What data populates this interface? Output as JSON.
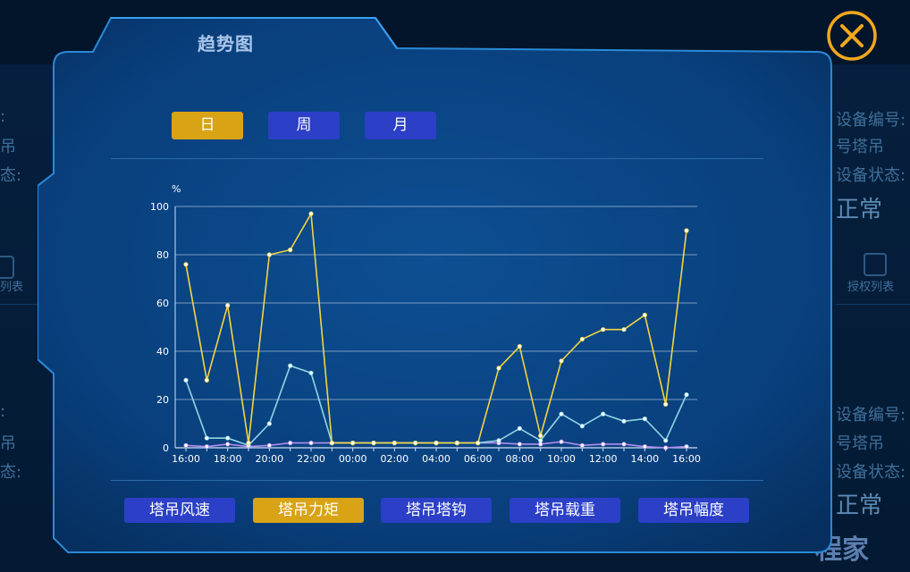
{
  "modal": {
    "title": "趋势图",
    "close_icon": "close-circle-x-icon"
  },
  "period_tabs": [
    {
      "label": "日",
      "active": true
    },
    {
      "label": "周",
      "active": false
    },
    {
      "label": "月",
      "active": false
    }
  ],
  "metric_tabs": [
    {
      "label": "塔吊风速",
      "active": false
    },
    {
      "label": "塔吊力矩",
      "active": true
    },
    {
      "label": "塔吊塔钩",
      "active": false
    },
    {
      "label": "塔吊载重",
      "active": false
    },
    {
      "label": "塔吊幅度",
      "active": false
    }
  ],
  "colors": {
    "active_tab": "#d9a316",
    "inactive_tab": "#2b3fc7",
    "series_yellow": "#f2d541",
    "series_cyan": "#8fd6e6",
    "series_purple": "#b48cf0",
    "close": "#f2a81d"
  },
  "background": {
    "left_labels": [
      ":",
      "吊",
      "态:",
      ":",
      "吊",
      "态:"
    ],
    "right_labels": [
      "设备编号:",
      "号塔吊",
      "设备状态:",
      "设备编号:",
      "号塔吊",
      "设备状态:"
    ],
    "status_values": [
      "正常",
      "正常"
    ],
    "left_link": "列表",
    "right_link": "授权列表",
    "watermark": "程家"
  },
  "chart_data": {
    "type": "line",
    "ylabel": "%",
    "ylim": [
      0,
      100
    ],
    "yticks": [
      0,
      20,
      40,
      60,
      80,
      100
    ],
    "grid": true,
    "x": [
      "16:00",
      "17:00",
      "18:00",
      "19:00",
      "20:00",
      "21:00",
      "22:00",
      "23:00",
      "00:00",
      "01:00",
      "02:00",
      "03:00",
      "04:00",
      "05:00",
      "06:00",
      "07:00",
      "08:00",
      "09:00",
      "10:00",
      "11:00",
      "12:00",
      "13:00",
      "14:00",
      "15:00",
      "16:00"
    ],
    "xtick_labels": [
      "16:00",
      "18:00",
      "20:00",
      "22:00",
      "00:00",
      "02:00",
      "04:00",
      "06:00",
      "08:00",
      "10:00",
      "12:00",
      "14:00",
      "16:00"
    ],
    "series": [
      {
        "color": "#f2d541",
        "values": [
          76,
          28,
          59,
          2,
          80,
          82,
          97,
          2,
          2,
          2,
          2,
          2,
          2,
          2,
          2,
          33,
          42,
          5,
          36,
          45,
          49,
          49,
          55,
          18,
          90
        ]
      },
      {
        "color": "#8fd6e6",
        "values": [
          28,
          4,
          4,
          1,
          10,
          34,
          31,
          2,
          2,
          2,
          2,
          2,
          2,
          2,
          2,
          3,
          8,
          3,
          14,
          9,
          14,
          11,
          12,
          3,
          22
        ]
      },
      {
        "color": "#b48cf0",
        "values": [
          1,
          0.5,
          1.5,
          0.5,
          1,
          2,
          2,
          2,
          2,
          2,
          2,
          2,
          2,
          2,
          2,
          2,
          1.5,
          1.5,
          2.5,
          1,
          1.5,
          1.5,
          0.5,
          0,
          0.5
        ]
      }
    ]
  }
}
